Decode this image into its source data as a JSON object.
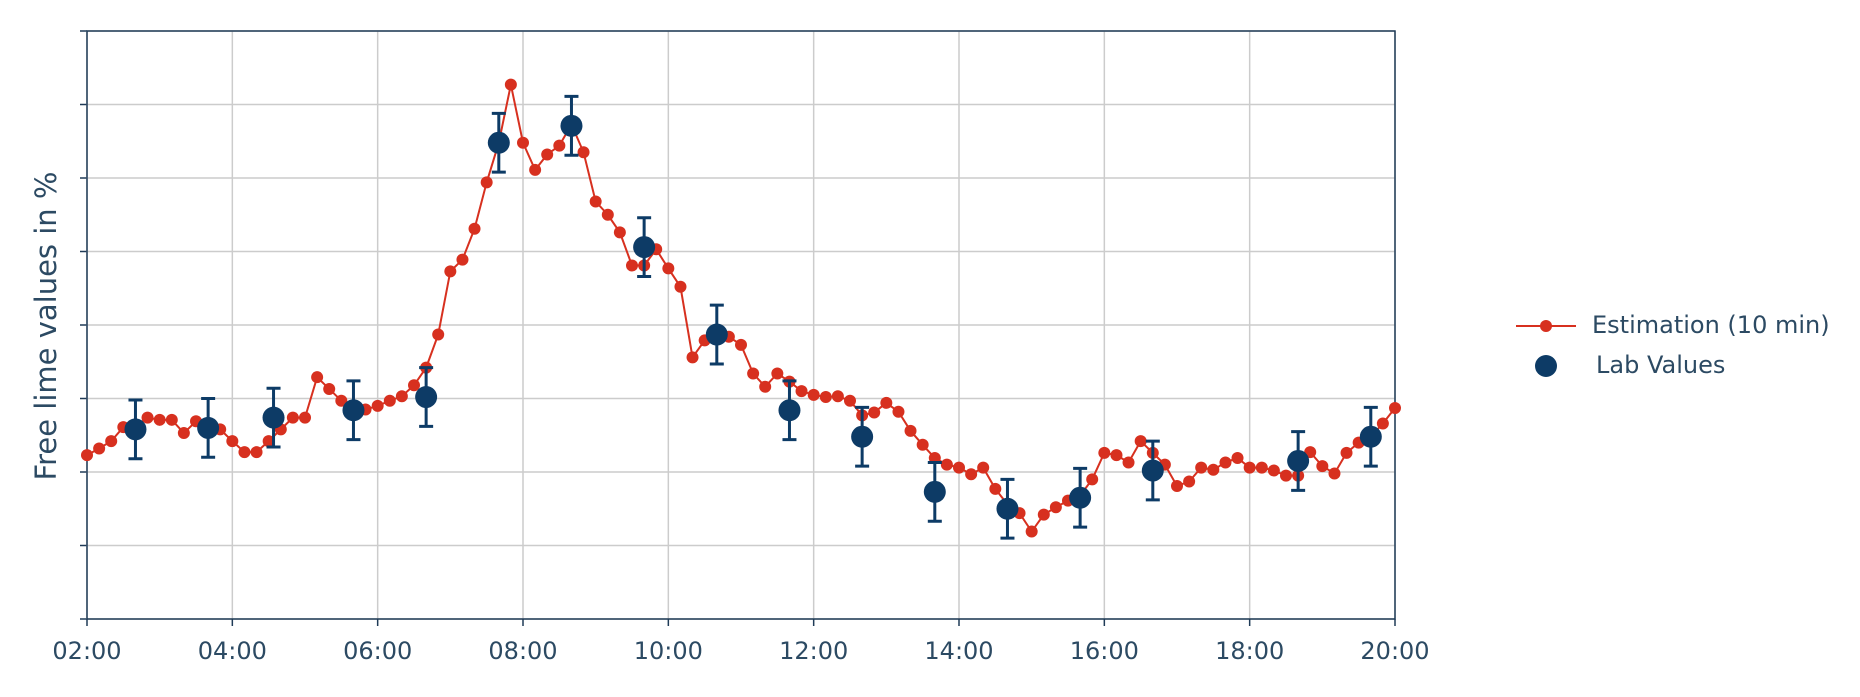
{
  "chart_data": {
    "type": "line",
    "y_label": "Free lime values in %",
    "xlim": [
      2,
      20
    ],
    "xticks": [
      {
        "value": 2,
        "label": "02:00"
      },
      {
        "value": 4,
        "label": "04:00"
      },
      {
        "value": 6,
        "label": "06:00"
      },
      {
        "value": 8,
        "label": "08:00"
      },
      {
        "value": 10,
        "label": "10:00"
      },
      {
        "value": 12,
        "label": "12:00"
      },
      {
        "value": 14,
        "label": "14:00"
      },
      {
        "value": 16,
        "label": "16:00"
      },
      {
        "value": 18,
        "label": "18:00"
      },
      {
        "value": 20,
        "label": "20:00"
      }
    ],
    "ylim": [
      0,
      8
    ],
    "yticks": [
      0,
      1,
      2,
      3,
      4,
      5,
      6,
      7,
      8
    ],
    "ytick_labels": false,
    "grid": true,
    "legend": "right",
    "series": [
      {
        "name": "Estimation (10 min)",
        "type": "line",
        "color": "#d7301f",
        "x": [
          2,
          2.167,
          2.333,
          2.5,
          2.667,
          2.833,
          3,
          3.167,
          3.333,
          3.5,
          3.667,
          3.833,
          4,
          4.167,
          4.333,
          4.5,
          4.667,
          4.833,
          5,
          5.167,
          5.333,
          5.5,
          5.667,
          5.833,
          6,
          6.167,
          6.333,
          6.5,
          6.667,
          6.833,
          7,
          7.167,
          7.333,
          7.5,
          7.667,
          7.833,
          8,
          8.167,
          8.333,
          8.5,
          8.667,
          8.833,
          9,
          9.167,
          9.333,
          9.5,
          9.667,
          9.833,
          10,
          10.167,
          10.333,
          10.5,
          10.667,
          10.833,
          11,
          11.167,
          11.333,
          11.5,
          11.667,
          11.833,
          12,
          12.167,
          12.333,
          12.5,
          12.667,
          12.833,
          13,
          13.167,
          13.333,
          13.5,
          13.667,
          13.833,
          14,
          14.167,
          14.333,
          14.5,
          14.667,
          14.833,
          15,
          15.167,
          15.333,
          15.5,
          15.667,
          15.833,
          16,
          16.167,
          16.333,
          16.5,
          16.667,
          16.833,
          17,
          17.167,
          17.333,
          17.5,
          17.667,
          17.833,
          18,
          18.167,
          18.333,
          18.5,
          18.667,
          18.833,
          19,
          19.167,
          19.333,
          19.5,
          19.667,
          19.833,
          20
        ],
        "values": [
          2.23,
          2.32,
          2.42,
          2.61,
          2.61,
          2.74,
          2.71,
          2.71,
          2.53,
          2.69,
          2.66,
          2.58,
          2.42,
          2.27,
          2.27,
          2.42,
          2.58,
          2.74,
          2.74,
          3.29,
          3.13,
          2.97,
          2.82,
          2.85,
          2.9,
          2.97,
          3.03,
          3.18,
          3.42,
          3.87,
          4.73,
          4.89,
          5.31,
          5.94,
          6.48,
          7.27,
          6.48,
          6.11,
          6.32,
          6.44,
          6.73,
          6.35,
          5.68,
          5.5,
          5.26,
          4.81,
          4.81,
          5.03,
          4.77,
          4.52,
          3.56,
          3.79,
          3.84,
          3.84,
          3.73,
          3.34,
          3.16,
          3.34,
          3.23,
          3.1,
          3.05,
          3.02,
          3.03,
          2.97,
          2.77,
          2.81,
          2.94,
          2.82,
          2.56,
          2.37,
          2.19,
          2.1,
          2.06,
          1.97,
          2.06,
          1.77,
          1.56,
          1.44,
          1.19,
          1.42,
          1.52,
          1.61,
          1.68,
          1.9,
          2.26,
          2.23,
          2.13,
          2.42,
          2.26,
          2.1,
          1.81,
          1.87,
          2.06,
          2.03,
          2.13,
          2.19,
          2.06,
          2.06,
          2.02,
          1.95,
          1.95,
          2.27,
          2.08,
          1.98,
          2.26,
          2.4,
          2.48,
          2.66,
          2.87
        ]
      },
      {
        "name": "Lab Values",
        "type": "scatter",
        "color": "#0d3b66",
        "x": [
          2.667,
          3.667,
          4.567,
          5.667,
          6.667,
          7.667,
          8.667,
          9.667,
          10.667,
          11.667,
          12.667,
          13.667,
          14.667,
          15.667,
          16.667,
          18.667,
          19.667
        ],
        "values": [
          2.58,
          2.6,
          2.74,
          2.84,
          3.02,
          6.48,
          6.71,
          5.06,
          3.87,
          2.84,
          2.48,
          1.73,
          1.5,
          1.65,
          2.02,
          2.15,
          2.48
        ],
        "errors": [
          0.4,
          0.4,
          0.4,
          0.4,
          0.4,
          0.4,
          0.4,
          0.4,
          0.4,
          0.4,
          0.4,
          0.4,
          0.4,
          0.4,
          0.4,
          0.4,
          0.4
        ]
      }
    ]
  }
}
